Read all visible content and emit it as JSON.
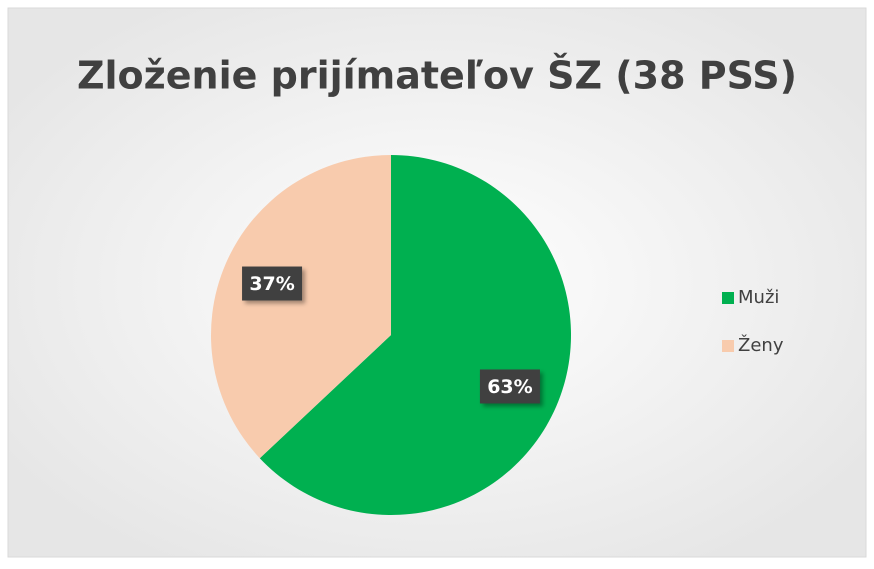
{
  "chart_data": {
    "type": "pie",
    "title": "Zloženie prijímateľov ŠZ (38 PSS)",
    "categories": [
      "Muži",
      "Ženy"
    ],
    "values": [
      63,
      37
    ],
    "value_labels": [
      "63%",
      "37%"
    ],
    "colors": [
      "#00b050",
      "#f8cbad"
    ],
    "legend": "right"
  }
}
